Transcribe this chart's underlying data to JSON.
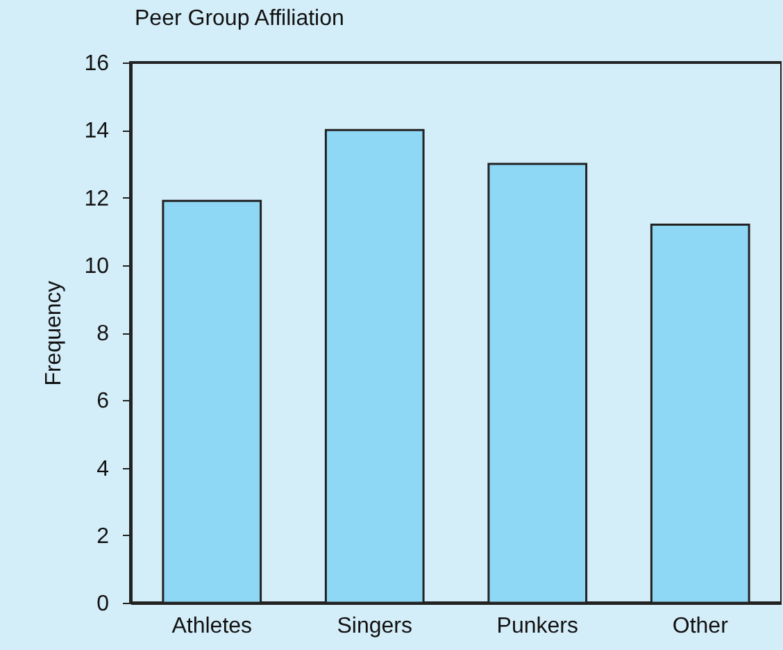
{
  "chart_data": {
    "type": "bar",
    "title": "Peer Group Affiliation",
    "ylabel": "Frequency",
    "categories": [
      "Athletes",
      "Singers",
      "Punkers",
      "Other"
    ],
    "values": [
      11.9,
      14,
      13,
      11.2
    ],
    "color": "#8fd8f5",
    "ylim": [
      0,
      16
    ],
    "yticks": [
      0,
      2,
      4,
      6,
      8,
      10,
      12,
      14,
      16
    ],
    "grid": false
  }
}
